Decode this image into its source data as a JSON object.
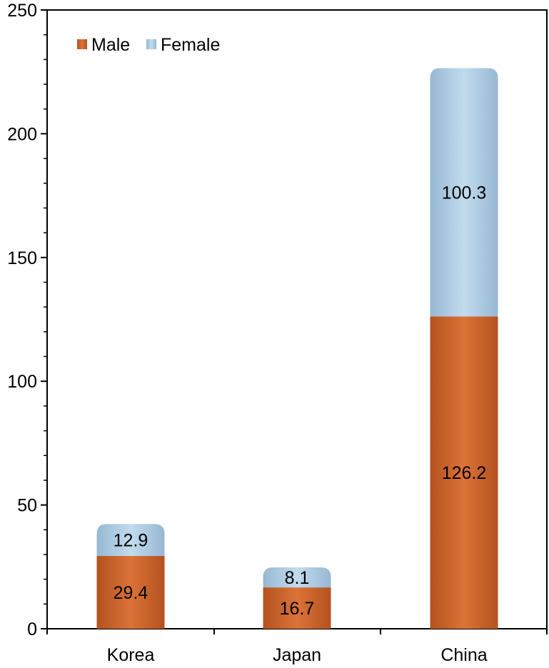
{
  "chart_data": {
    "type": "bar",
    "stacked": true,
    "categories": [
      "Korea",
      "Japan",
      "China"
    ],
    "series": [
      {
        "name": "Male",
        "values": [
          29.4,
          16.7,
          126.2
        ],
        "color": "#c8612a"
      },
      {
        "name": "Female",
        "values": [
          12.9,
          8.1,
          100.3
        ],
        "color": "#a9c8e0"
      }
    ],
    "ylim": [
      0,
      250
    ],
    "yticks": [
      0,
      50,
      100,
      150,
      200,
      250
    ],
    "xlabel": "",
    "ylabel": "",
    "title": "",
    "grid": false,
    "legend_position": "top-left"
  }
}
